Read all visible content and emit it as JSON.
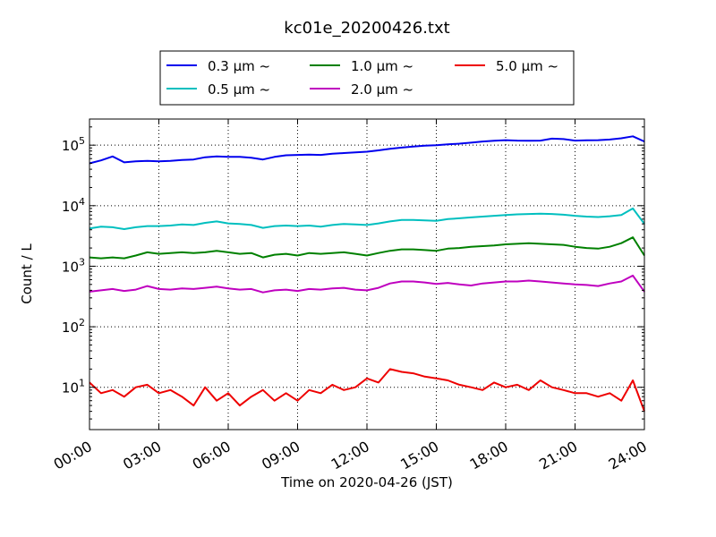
{
  "chart_data": {
    "type": "line",
    "title": "kc01e_20200426.txt",
    "xlabel": "Time on 2020-04-26 (JST)",
    "ylabel": "Count / L",
    "y_scale": "log",
    "ylim": [
      2,
      270000
    ],
    "xlim": [
      "00:00",
      "24:00"
    ],
    "x_tick_labels": [
      "00:00",
      "03:00",
      "06:00",
      "09:00",
      "12:00",
      "15:00",
      "18:00",
      "21:00",
      "24:00"
    ],
    "y_tick_labels": [
      {
        "base": "10",
        "exp": "1"
      },
      {
        "base": "10",
        "exp": "2"
      },
      {
        "base": "10",
        "exp": "3"
      },
      {
        "base": "10",
        "exp": "4"
      },
      {
        "base": "10",
        "exp": "5"
      }
    ],
    "grid": true,
    "legend_position": "top",
    "x_hours": [
      0.0,
      0.5,
      1.0,
      1.5,
      2.0,
      2.5,
      3.0,
      3.5,
      4.0,
      4.5,
      5.0,
      5.5,
      6.0,
      6.5,
      7.0,
      7.5,
      8.0,
      8.5,
      9.0,
      9.5,
      10.0,
      10.5,
      11.0,
      11.5,
      12.0,
      12.5,
      13.0,
      13.5,
      14.0,
      14.5,
      15.0,
      15.5,
      16.0,
      16.5,
      17.0,
      17.5,
      18.0,
      18.5,
      19.0,
      19.5,
      20.0,
      20.5,
      21.0,
      21.5,
      22.0,
      22.5,
      23.0,
      23.5,
      24.0
    ],
    "series": [
      {
        "name": "0.3 μm ~",
        "color": "#0000ee",
        "values": [
          50000,
          56000,
          65000,
          52000,
          54000,
          55000,
          54000,
          55000,
          57000,
          58000,
          63000,
          65000,
          64000,
          64000,
          62000,
          58000,
          64000,
          68000,
          69000,
          70000,
          69000,
          72000,
          74000,
          76000,
          78000,
          82000,
          87000,
          91000,
          95000,
          98000,
          100000,
          103000,
          106000,
          110000,
          115000,
          118000,
          121000,
          119000,
          118000,
          119000,
          128000,
          126000,
          119000,
          120000,
          121000,
          124000,
          130000,
          140000,
          115000
        ]
      },
      {
        "name": "0.5 μm ~",
        "color": "#00bfbf",
        "values": [
          4200,
          4500,
          4400,
          4100,
          4400,
          4600,
          4600,
          4700,
          4900,
          4800,
          5200,
          5500,
          5100,
          5000,
          4800,
          4300,
          4600,
          4700,
          4600,
          4700,
          4500,
          4800,
          5000,
          4900,
          4800,
          5100,
          5500,
          5800,
          5800,
          5700,
          5600,
          6000,
          6200,
          6400,
          6600,
          6800,
          7000,
          7200,
          7300,
          7400,
          7300,
          7100,
          6800,
          6600,
          6500,
          6700,
          7000,
          9000,
          5000
        ]
      },
      {
        "name": "1.0 μm ~",
        "color": "#008000",
        "values": [
          1400,
          1350,
          1400,
          1350,
          1500,
          1700,
          1600,
          1650,
          1700,
          1650,
          1700,
          1800,
          1700,
          1600,
          1650,
          1400,
          1550,
          1600,
          1500,
          1650,
          1600,
          1650,
          1700,
          1600,
          1500,
          1650,
          1800,
          1900,
          1900,
          1850,
          1800,
          1950,
          2000,
          2100,
          2150,
          2200,
          2300,
          2350,
          2400,
          2350,
          2300,
          2250,
          2100,
          2000,
          1950,
          2100,
          2400,
          3000,
          1500
        ]
      },
      {
        "name": "2.0 μm ~",
        "color": "#bf00bf",
        "values": [
          380,
          400,
          420,
          390,
          410,
          470,
          420,
          410,
          430,
          420,
          440,
          460,
          430,
          410,
          420,
          370,
          400,
          410,
          390,
          420,
          410,
          430,
          440,
          410,
          400,
          440,
          520,
          560,
          560,
          540,
          510,
          530,
          500,
          480,
          520,
          540,
          560,
          560,
          580,
          560,
          540,
          520,
          500,
          490,
          470,
          520,
          560,
          700,
          380
        ]
      },
      {
        "name": "5.0 μm ~",
        "color": "#ee0000",
        "values": [
          12,
          8,
          9,
          7,
          10,
          11,
          8,
          9,
          7,
          5,
          10,
          6,
          8,
          5,
          7,
          9,
          6,
          8,
          6,
          9,
          8,
          11,
          9,
          10,
          14,
          12,
          20,
          18,
          17,
          15,
          14,
          13,
          11,
          10,
          9,
          12,
          10,
          11,
          9,
          13,
          10,
          9,
          8,
          8,
          7,
          8,
          6,
          13,
          4
        ]
      }
    ]
  }
}
